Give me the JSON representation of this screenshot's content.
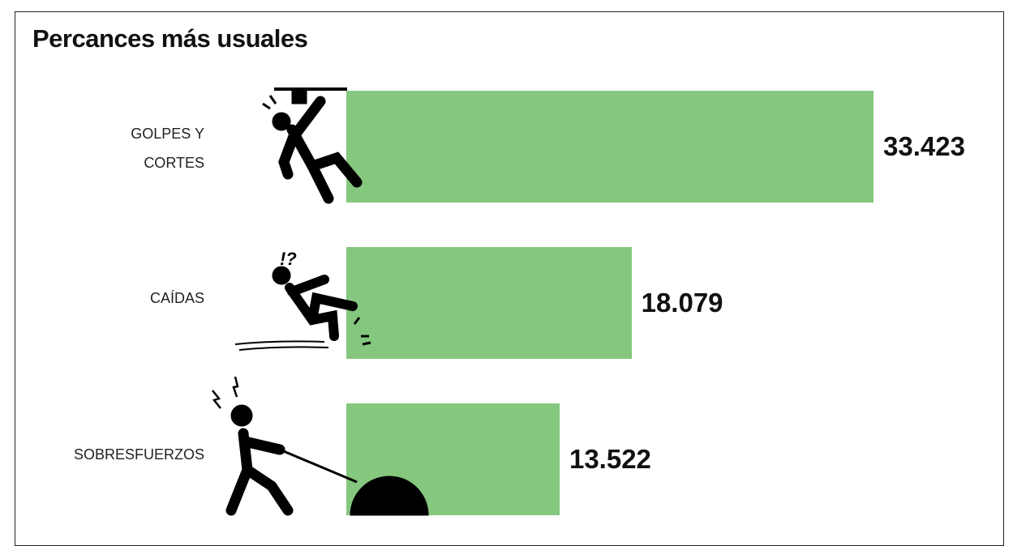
{
  "chart_data": {
    "type": "bar",
    "orientation": "horizontal",
    "title": "Percances más usuales",
    "categories": [
      "GOLPES Y CORTES",
      "CAÍDAS",
      "SOBRESFUERZOS"
    ],
    "values": [
      33423,
      18079,
      13522
    ],
    "value_labels": [
      "33.423",
      "18.079",
      "13.522"
    ],
    "color": "#85c77e"
  }
}
